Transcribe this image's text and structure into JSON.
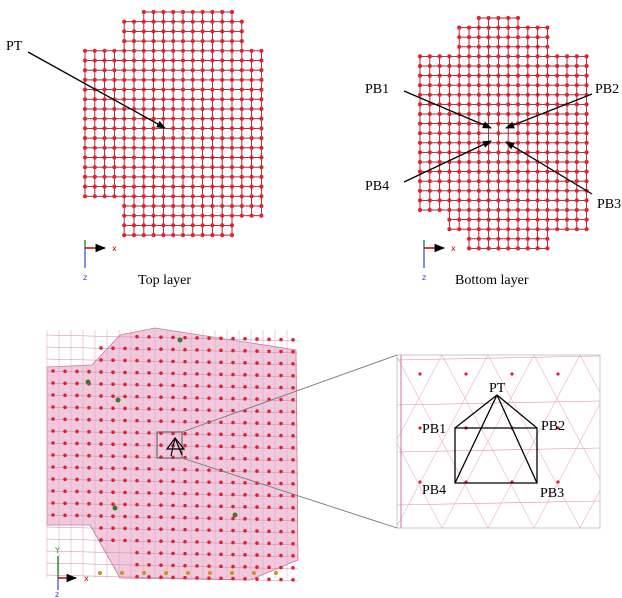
{
  "top_layer": {
    "point_label": "PT",
    "caption": "Top layer",
    "axes": {
      "x": "x",
      "z": "z"
    }
  },
  "bottom_layer": {
    "point_labels": [
      "PB1",
      "PB2",
      "PB3",
      "PB4"
    ],
    "caption": "Bottom layer",
    "axes": {
      "x": "x",
      "z": "z"
    }
  },
  "model_view": {
    "axes": {
      "y": "Y",
      "x": "x",
      "z": "z"
    }
  },
  "detail_view": {
    "labels": [
      "PT",
      "PB1",
      "PB2",
      "PB3",
      "PB4"
    ]
  }
}
